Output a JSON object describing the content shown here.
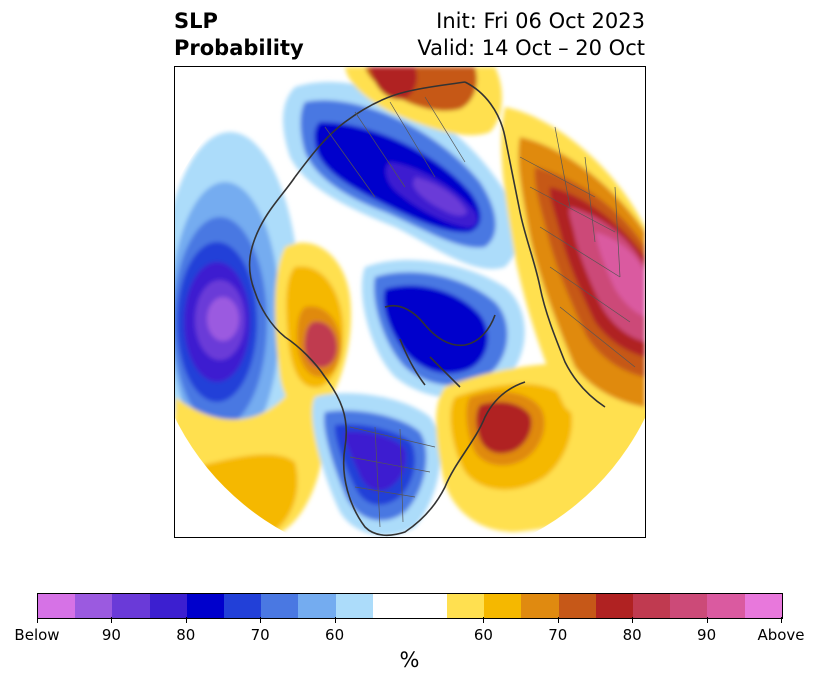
{
  "title": {
    "left_line1": "SLP",
    "left_line2": "Probability",
    "right_line1": "Init: Fri 06 Oct 2023",
    "right_line2": "Valid: 14 Oct – 20 Oct"
  },
  "colorbar": {
    "units": "%",
    "colors": [
      "#d672e6",
      "#9b5ae0",
      "#6a3ad8",
      "#3c1fd0",
      "#0000cc",
      "#2240d8",
      "#4a78e2",
      "#74acf0",
      "#acdcfa",
      "#ffffff",
      "#ffffff",
      "#ffe050",
      "#f5b800",
      "#e08a10",
      "#c65818",
      "#b02222",
      "#c03a50",
      "#cc4a78",
      "#da5aa0",
      "#e878dc"
    ],
    "tick_labels": [
      "Below",
      "90",
      "80",
      "70",
      "60",
      "60",
      "70",
      "80",
      "90",
      "Above"
    ]
  },
  "map": {
    "projection": "north-polar-stereographic",
    "field": "sea level pressure tercile probability"
  }
}
